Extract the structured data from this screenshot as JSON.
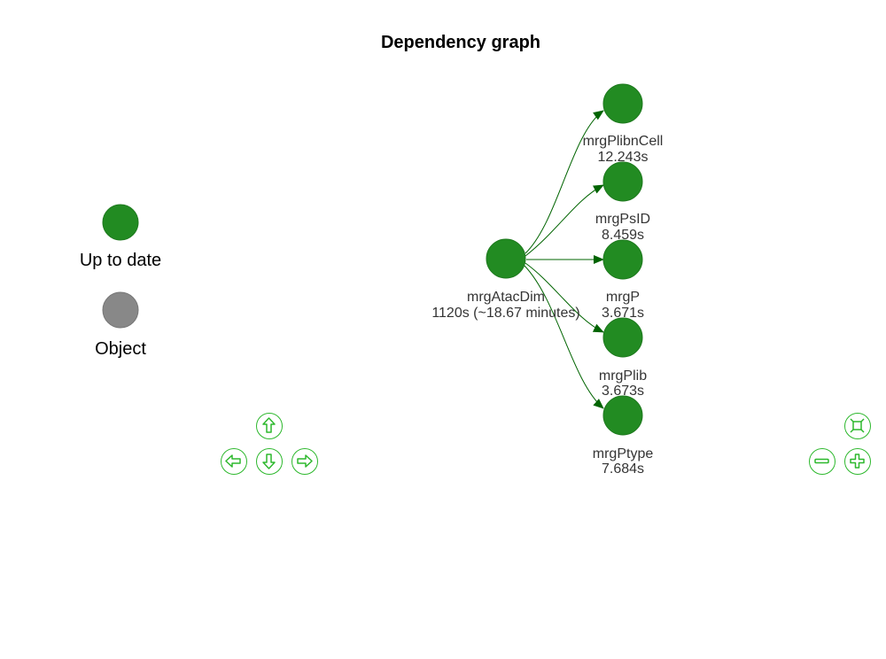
{
  "title": "Dependency graph",
  "colors": {
    "up_to_date": "#228b22",
    "object": "#888888",
    "edge": "#006400",
    "nav": "#2db82d"
  },
  "legend": [
    {
      "label": "Up to date",
      "color": "#228b22",
      "shape": "circle"
    },
    {
      "label": "Object",
      "color": "#888888",
      "shape": "circle"
    }
  ],
  "nodes": [
    {
      "id": "mrgAtacDim",
      "label": "mrgAtacDim",
      "time": "1120s (~18.67 minutes)",
      "status": "Up to date"
    },
    {
      "id": "mrgPlibnCell",
      "label": "mrgPlibnCell",
      "time": "12.243s",
      "status": "Up to date"
    },
    {
      "id": "mrgPsID",
      "label": "mrgPsID",
      "time": "8.459s",
      "status": "Up to date"
    },
    {
      "id": "mrgP",
      "label": "mrgP",
      "time": "3.671s",
      "status": "Up to date"
    },
    {
      "id": "mrgPlib",
      "label": "mrgPlib",
      "time": "3.673s",
      "status": "Up to date"
    },
    {
      "id": "mrgPtype",
      "label": "mrgPtype",
      "time": "7.684s",
      "status": "Up to date"
    }
  ],
  "edges": [
    {
      "from": "mrgAtacDim",
      "to": "mrgPlibnCell"
    },
    {
      "from": "mrgAtacDim",
      "to": "mrgPsID"
    },
    {
      "from": "mrgAtacDim",
      "to": "mrgP"
    },
    {
      "from": "mrgAtacDim",
      "to": "mrgPlib"
    },
    {
      "from": "mrgAtacDim",
      "to": "mrgPtype"
    }
  ],
  "navigation": {
    "up_icon": "arrow-up-icon",
    "down_icon": "arrow-down-icon",
    "left_icon": "arrow-left-icon",
    "right_icon": "arrow-right-icon",
    "fit_icon": "fit-icon",
    "zoom_out_icon": "zoom-out-icon",
    "zoom_in_icon": "zoom-in-icon"
  }
}
